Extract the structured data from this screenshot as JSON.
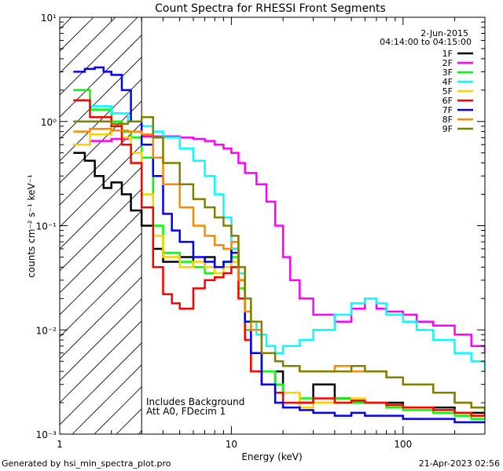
{
  "chart_data": {
    "type": "line",
    "title": "Count Spectra for RHESSI Front Segments",
    "xlabel": "Energy (keV)",
    "ylabel": "counts cm⁻² s⁻¹ keV⁻¹",
    "xscale": "log",
    "yscale": "log",
    "xlim": [
      1.0,
      300.0
    ],
    "ylim": [
      0.001,
      10.0
    ],
    "x_ticks": [
      "1",
      "10",
      "100"
    ],
    "y_ticks": [
      "10⁻³",
      "10⁻²",
      "10⁻¹",
      "10⁰",
      "10¹"
    ],
    "hatched_region_x": [
      1.0,
      3.0
    ],
    "info_date": "2-Jun-2015",
    "info_time": "04:14:00 to 04:15:00",
    "annotation_lines": [
      "Includes Background",
      "Att A0, FDecim 1"
    ],
    "series": [
      {
        "name": "1F",
        "color": "#000000",
        "x": [
          1.2,
          1.4,
          1.6,
          1.8,
          2.0,
          2.3,
          2.6,
          3.0,
          3.5,
          4.0,
          5.0,
          6.0,
          7.0,
          8.0,
          9.0,
          10.0,
          11.0,
          12.0,
          13.0,
          15.0,
          18.0,
          20.0,
          25.0,
          30.0,
          40.0,
          50.0,
          60.0,
          80.0,
          100.0,
          150.0,
          200.0,
          250.0,
          300.0
        ],
        "y": [
          0.5,
          0.42,
          0.3,
          0.23,
          0.26,
          0.2,
          0.14,
          0.1,
          0.06,
          0.045,
          0.05,
          0.04,
          0.05,
          0.04,
          0.045,
          0.06,
          0.03,
          0.012,
          0.006,
          0.003,
          0.004,
          0.0025,
          0.002,
          0.003,
          0.0022,
          0.002,
          0.002,
          0.002,
          0.0018,
          0.0018,
          0.0016,
          0.0016,
          0.0015
        ]
      },
      {
        "name": "2F",
        "color": "#ff00ff",
        "x": [
          1.2,
          1.5,
          2.0,
          2.5,
          3.0,
          4.0,
          5.0,
          6.0,
          7.0,
          8.0,
          9.0,
          10.0,
          11.0,
          12.0,
          14.0,
          16.0,
          18.0,
          20.0,
          22.0,
          25.0,
          30.0,
          40.0,
          50.0,
          60.0,
          70.0,
          80.0,
          100.0,
          120.0,
          150.0,
          200.0,
          250.0,
          300.0
        ],
        "y": [
          0.6,
          0.65,
          0.68,
          0.7,
          0.72,
          0.72,
          0.7,
          0.68,
          0.65,
          0.6,
          0.55,
          0.5,
          0.4,
          0.32,
          0.25,
          0.17,
          0.1,
          0.05,
          0.03,
          0.02,
          0.014,
          0.012,
          0.016,
          0.02,
          0.016,
          0.015,
          0.014,
          0.012,
          0.011,
          0.009,
          0.007,
          0.006
        ]
      },
      {
        "name": "3F",
        "color": "#00ff00",
        "x": [
          1.2,
          1.5,
          2.0,
          2.3,
          2.6,
          3.0,
          3.5,
          4.0,
          5.0,
          6.0,
          7.0,
          8.0,
          9.0,
          10.0,
          11.0,
          12.0,
          13.0,
          15.0,
          18.0,
          20.0,
          25.0,
          30.0,
          40.0,
          50.0,
          60.0,
          80.0,
          100.0,
          150.0,
          200.0,
          250.0,
          300.0
        ],
        "y": [
          2.0,
          1.3,
          1.0,
          0.8,
          0.7,
          0.45,
          0.1,
          0.055,
          0.045,
          0.04,
          0.035,
          0.04,
          0.045,
          0.05,
          0.025,
          0.01,
          0.006,
          0.004,
          0.003,
          0.0025,
          0.0022,
          0.002,
          0.0022,
          0.002,
          0.002,
          0.0018,
          0.0017,
          0.0016,
          0.0015,
          0.0014,
          0.0014
        ]
      },
      {
        "name": "4F",
        "color": "#00ffff",
        "x": [
          1.2,
          1.5,
          2.0,
          2.5,
          3.0,
          3.5,
          4.0,
          5.0,
          6.0,
          7.0,
          8.0,
          9.0,
          10.0,
          11.0,
          12.0,
          13.0,
          14.0,
          16.0,
          18.0,
          20.0,
          25.0,
          30.0,
          40.0,
          50.0,
          60.0,
          70.0,
          80.0,
          100.0,
          120.0,
          150.0,
          200.0,
          250.0,
          300.0
        ],
        "y": [
          1.6,
          1.4,
          1.2,
          1.0,
          0.9,
          0.8,
          0.7,
          0.55,
          0.42,
          0.3,
          0.2,
          0.12,
          0.06,
          0.035,
          0.02,
          0.012,
          0.009,
          0.007,
          0.006,
          0.007,
          0.008,
          0.01,
          0.014,
          0.018,
          0.02,
          0.018,
          0.014,
          0.012,
          0.01,
          0.008,
          0.006,
          0.005,
          0.004
        ]
      },
      {
        "name": "5F",
        "color": "#ffd000",
        "x": [
          1.2,
          1.5,
          2.0,
          2.3,
          2.6,
          3.0,
          3.5,
          4.0,
          5.0,
          6.0,
          7.0,
          8.0,
          9.0,
          10.0,
          11.0,
          12.0,
          13.0,
          15.0,
          18.0,
          20.0,
          25.0,
          30.0,
          40.0,
          50.0,
          60.0,
          80.0,
          100.0,
          150.0,
          200.0,
          250.0,
          300.0
        ],
        "y": [
          0.6,
          0.75,
          0.9,
          0.7,
          0.5,
          0.2,
          0.08,
          0.05,
          0.04,
          0.045,
          0.04,
          0.035,
          0.04,
          0.045,
          0.02,
          0.008,
          0.004,
          0.003,
          0.002,
          0.0025,
          0.0018,
          0.002,
          0.002,
          0.0022,
          0.002,
          0.0019,
          0.0018,
          0.0017,
          0.0016,
          0.0015,
          0.0015
        ]
      },
      {
        "name": "6F",
        "color": "#ff0000",
        "x": [
          1.2,
          1.5,
          2.0,
          2.3,
          2.6,
          3.0,
          3.5,
          4.0,
          4.5,
          5.0,
          6.0,
          7.0,
          8.0,
          9.0,
          10.0,
          11.0,
          12.0,
          13.0,
          15.0,
          18.0,
          20.0,
          25.0,
          30.0,
          40.0,
          50.0,
          60.0,
          80.0,
          100.0,
          150.0,
          200.0,
          250.0,
          300.0
        ],
        "y": [
          1.6,
          1.1,
          0.9,
          0.6,
          0.4,
          0.15,
          0.04,
          0.022,
          0.018,
          0.016,
          0.025,
          0.03,
          0.032,
          0.035,
          0.04,
          0.02,
          0.008,
          0.004,
          0.003,
          0.0025,
          0.002,
          0.002,
          0.0022,
          0.002,
          0.0021,
          0.002,
          0.0019,
          0.0018,
          0.0017,
          0.0016,
          0.0015,
          0.0015
        ]
      },
      {
        "name": "7F",
        "color": "#0000ff",
        "x": [
          1.2,
          1.4,
          1.6,
          1.8,
          2.0,
          2.3,
          2.6,
          3.0,
          3.5,
          4.0,
          4.5,
          5.0,
          6.0,
          7.0,
          8.0,
          9.0,
          10.0,
          11.0,
          12.0,
          13.0,
          15.0,
          18.0,
          20.0,
          25.0,
          30.0,
          40.0,
          50.0,
          60.0,
          80.0,
          100.0,
          150.0,
          200.0,
          250.0,
          300.0
        ],
        "y": [
          3.0,
          3.2,
          3.3,
          3.0,
          2.8,
          2.0,
          1.0,
          0.6,
          0.3,
          0.13,
          0.09,
          0.07,
          0.05,
          0.045,
          0.04,
          0.045,
          0.055,
          0.03,
          0.012,
          0.006,
          0.003,
          0.002,
          0.0018,
          0.0017,
          0.0016,
          0.0015,
          0.0016,
          0.0015,
          0.0015,
          0.0014,
          0.0014,
          0.0013,
          0.0013,
          0.0013
        ]
      },
      {
        "name": "8F",
        "color": "#ff8800",
        "x": [
          1.2,
          1.5,
          2.0,
          2.5,
          3.0,
          3.5,
          4.0,
          5.0,
          6.0,
          7.0,
          8.0,
          9.0,
          10.0,
          11.0,
          12.0,
          13.0,
          15.0,
          18.0,
          20.0,
          25.0,
          30.0,
          40.0,
          50.0,
          60.0,
          80.0,
          100.0,
          150.0,
          200.0,
          250.0,
          300.0
        ],
        "y": [
          0.8,
          0.85,
          0.82,
          0.8,
          0.75,
          0.45,
          0.25,
          0.15,
          0.1,
          0.08,
          0.065,
          0.06,
          0.07,
          0.03,
          0.015,
          0.01,
          0.006,
          0.005,
          0.0045,
          0.004,
          0.004,
          0.0045,
          0.004,
          0.004,
          0.0035,
          0.003,
          0.0025,
          0.002,
          0.0018,
          0.0016
        ]
      },
      {
        "name": "9F",
        "color": "#808000",
        "x": [
          1.2,
          1.5,
          2.0,
          2.5,
          3.0,
          3.5,
          4.0,
          5.0,
          6.0,
          7.0,
          8.0,
          9.0,
          10.0,
          11.0,
          12.0,
          13.0,
          15.0,
          18.0,
          20.0,
          25.0,
          30.0,
          40.0,
          50.0,
          60.0,
          80.0,
          100.0,
          150.0,
          200.0,
          250.0,
          300.0
        ],
        "y": [
          1.0,
          1.0,
          0.95,
          1.0,
          1.1,
          0.7,
          0.4,
          0.25,
          0.18,
          0.15,
          0.12,
          0.1,
          0.08,
          0.04,
          0.02,
          0.012,
          0.006,
          0.005,
          0.0045,
          0.004,
          0.004,
          0.004,
          0.0045,
          0.004,
          0.0035,
          0.003,
          0.0025,
          0.002,
          0.0018,
          0.0016
        ]
      }
    ]
  },
  "footer": {
    "generated_by": "Generated by hsi_min_spectra_plot.pro",
    "timestamp": "21-Apr-2023 02:56"
  }
}
